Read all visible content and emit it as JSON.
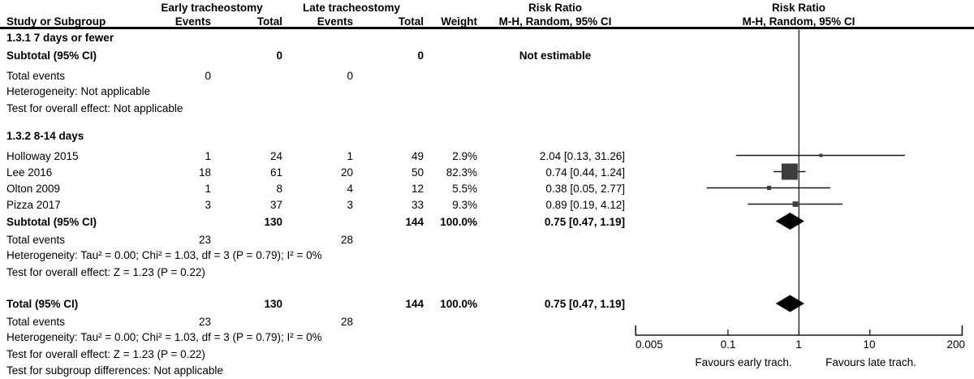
{
  "header": {
    "study_col": "Study or Subgroup",
    "group1": "Early tracheostomy",
    "group2": "Late tracheostomy",
    "events": "Events",
    "total": "Total",
    "weight": "Weight",
    "risk_ratio": "Risk Ratio",
    "method": "M-H, Random, 95% CI"
  },
  "section1": {
    "title": "1.3.1 7 days or fewer",
    "subtotal_label": "Subtotal (95% CI)",
    "subtotal_t1": "0",
    "subtotal_t2": "0",
    "subtotal_rr": "Not estimable",
    "total_events_label": "Total events",
    "total_events_1": "0",
    "total_events_2": "0",
    "heterogeneity": "Heterogeneity: Not applicable",
    "overall_effect": "Test for overall effect: Not applicable"
  },
  "section2": {
    "title": "1.3.2 8-14 days",
    "studies": [
      {
        "name": "Holloway 2015",
        "e1": "1",
        "t1": "24",
        "e2": "1",
        "t2": "49",
        "weight": "2.9%",
        "rr": "2.04 [0.13, 31.26]"
      },
      {
        "name": "Lee 2016",
        "e1": "18",
        "t1": "61",
        "e2": "20",
        "t2": "50",
        "weight": "82.3%",
        "rr": "0.74 [0.44, 1.24]"
      },
      {
        "name": "Olton 2009",
        "e1": "1",
        "t1": "8",
        "e2": "4",
        "t2": "12",
        "weight": "5.5%",
        "rr": "0.38 [0.05, 2.77]"
      },
      {
        "name": "Pizza 2017",
        "e1": "3",
        "t1": "37",
        "e2": "3",
        "t2": "33",
        "weight": "9.3%",
        "rr": "0.89 [0.19, 4.12]"
      }
    ],
    "subtotal_label": "Subtotal (95% CI)",
    "subtotal_t1": "130",
    "subtotal_t2": "144",
    "subtotal_weight": "100.0%",
    "subtotal_rr": "0.75 [0.47, 1.19]",
    "total_events_label": "Total events",
    "total_events_1": "23",
    "total_events_2": "28",
    "heterogeneity": "Heterogeneity: Tau² = 0.00; Chi² = 1.03, df = 3 (P = 0.79); I² = 0%",
    "overall_effect": "Test for overall effect: Z = 1.23 (P = 0.22)"
  },
  "total": {
    "label": "Total (95% CI)",
    "t1": "130",
    "t2": "144",
    "weight": "100.0%",
    "rr": "0.75 [0.47, 1.19]",
    "total_events_label": "Total events",
    "total_events_1": "23",
    "total_events_2": "28",
    "heterogeneity": "Heterogeneity: Tau² = 0.00; Chi² = 1.03, df = 3 (P = 0.79); I² = 0%",
    "overall_effect": "Test for overall effect: Z = 1.23 (P = 0.22)",
    "subgroup_diff": "Test for subgroup differences: Not applicable"
  },
  "axis": {
    "tick_labels": [
      "0.005",
      "0.1",
      "1",
      "10",
      "200"
    ],
    "favours_left": "Favours early trach.",
    "favours_right": "Favours late trach."
  },
  "colors": {
    "marker_square": "#3d3d3d",
    "diamond": "#000000",
    "line": "#1a1a1a"
  },
  "chart_data": {
    "type": "scatter",
    "subtype": "forest-plot",
    "effect_measure": "Risk Ratio (M-H, Random, 95% CI)",
    "x_scale": "log10",
    "x_range": [
      0.005,
      200
    ],
    "x_ticks": [
      0.005,
      0.1,
      1,
      10,
      200
    ],
    "null_line": 1,
    "studies": [
      {
        "name": "Holloway 2015",
        "rr": 2.04,
        "ci_low": 0.13,
        "ci_high": 31.26,
        "weight_pct": 2.9
      },
      {
        "name": "Lee 2016",
        "rr": 0.74,
        "ci_low": 0.44,
        "ci_high": 1.24,
        "weight_pct": 82.3
      },
      {
        "name": "Olton 2009",
        "rr": 0.38,
        "ci_low": 0.05,
        "ci_high": 2.77,
        "weight_pct": 5.5
      },
      {
        "name": "Pizza 2017",
        "rr": 0.89,
        "ci_low": 0.19,
        "ci_high": 4.12,
        "weight_pct": 9.3
      }
    ],
    "subtotal": {
      "rr": 0.75,
      "ci_low": 0.47,
      "ci_high": 1.19
    },
    "total": {
      "rr": 0.75,
      "ci_low": 0.47,
      "ci_high": 1.19
    }
  }
}
